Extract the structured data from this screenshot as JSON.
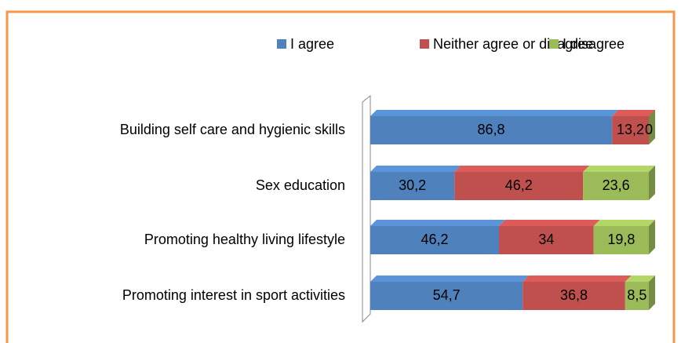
{
  "chart_data": {
    "type": "stacked-bar-horizontal",
    "categories": [
      "Building self care and hygienic skills",
      "Sex education",
      "Promoting healthy living lifestyle",
      "Promoting interest in sport activities"
    ],
    "series": [
      {
        "name": "I agree",
        "color": "#4f81bd",
        "values": [
          86.8,
          30.2,
          46.2,
          54.7
        ],
        "value_labels": [
          "86,8",
          "30,2",
          "46,2",
          "54,7"
        ]
      },
      {
        "name": "Neither agree or disagree",
        "color": "#c0504d",
        "values": [
          13.2,
          46.2,
          34,
          36.8
        ],
        "value_labels": [
          "13,2",
          "46,2",
          "34",
          "36,8"
        ]
      },
      {
        "name": "I disagree",
        "color": "#9bbb59",
        "values": [
          0,
          23.6,
          19.8,
          8.5
        ],
        "value_labels": [
          "0",
          "23,6",
          "19,8",
          "8,5"
        ]
      }
    ],
    "xlim": [
      0,
      100
    ],
    "legend": "top"
  }
}
